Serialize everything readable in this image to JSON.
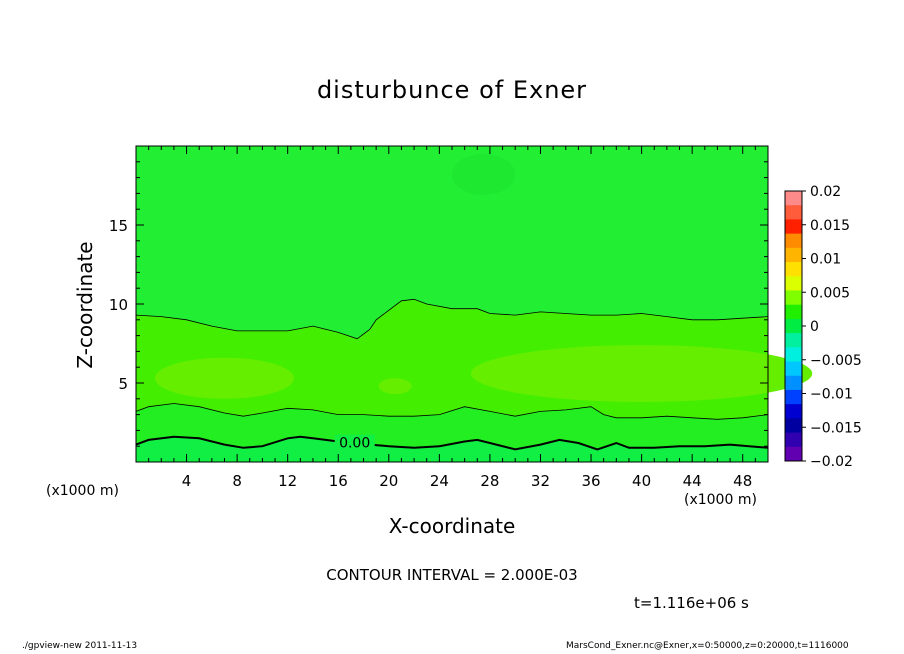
{
  "chart_data": {
    "type": "contour",
    "title": "disturbunce of Exner",
    "xlabel": "X-coordinate",
    "ylabel": "Z-coordinate",
    "x_unit": "(x1000 m)",
    "xlim": [
      0,
      50
    ],
    "ylim": [
      0,
      20
    ],
    "x_ticks": [
      "4",
      "8",
      "12",
      "16",
      "20",
      "24",
      "28",
      "32",
      "36",
      "40",
      "44",
      "48"
    ],
    "x_tick_values": [
      4,
      8,
      12,
      16,
      20,
      24,
      28,
      32,
      36,
      40,
      44,
      48
    ],
    "y_ticks": [
      "5",
      "10",
      "15"
    ],
    "y_tick_values": [
      5,
      10,
      15
    ],
    "contour_interval_text": "CONTOUR INTERVAL = 2.000E-03",
    "contour_labels": [
      {
        "text": "0.00",
        "x": 17.3,
        "y": 1.1
      }
    ],
    "colorbar": {
      "labels": [
        "0.02",
        "0.015",
        "0.01",
        "0.005",
        "0",
        "−0.005",
        "−0.01",
        "−0.015",
        "−0.02"
      ],
      "values": [
        0.02,
        0.015,
        0.01,
        0.005,
        0,
        -0.005,
        -0.01,
        -0.015,
        -0.02
      ],
      "colors": [
        "#ff8a8a",
        "#ff5c3c",
        "#ff2000",
        "#ff8c00",
        "#ffb400",
        "#ffe000",
        "#dcff00",
        "#80ff00",
        "#20f000",
        "#00ee44",
        "#00f0a0",
        "#00f0e0",
        "#00c8ff",
        "#0090ff",
        "#0040ff",
        "#0000d0",
        "#0000a0",
        "#3000b0",
        "#6000b0"
      ]
    },
    "time_label": "t=1.116e+06 s",
    "footer_left": "./gpview-new   2011-11-13",
    "footer_right": "MarsCond_Exner.nc@Exner,x=0:50000,z=0:20000,t=1116000",
    "regions": {
      "background": "#22ee33",
      "upper_band": "#44ee00",
      "mid_band": "#66ee00",
      "lower_band": "#22ee22",
      "bottom_band": "#11ee44"
    },
    "contour_lines": {
      "upper": [
        [
          0,
          9.3
        ],
        [
          2,
          9.2
        ],
        [
          4,
          9.0
        ],
        [
          6,
          8.6
        ],
        [
          8,
          8.3
        ],
        [
          10,
          8.3
        ],
        [
          12,
          8.3
        ],
        [
          14,
          8.6
        ],
        [
          16,
          8.2
        ],
        [
          17.5,
          7.8
        ],
        [
          18.5,
          8.4
        ],
        [
          19,
          9.0
        ],
        [
          20,
          9.6
        ],
        [
          21,
          10.2
        ],
        [
          22,
          10.3
        ],
        [
          23,
          10.0
        ],
        [
          25,
          9.7
        ],
        [
          27,
          9.7
        ],
        [
          28,
          9.4
        ],
        [
          30,
          9.3
        ],
        [
          32,
          9.5
        ],
        [
          34,
          9.4
        ],
        [
          36,
          9.3
        ],
        [
          38,
          9.3
        ],
        [
          40,
          9.4
        ],
        [
          42,
          9.2
        ],
        [
          44,
          9.0
        ],
        [
          46,
          9.0
        ],
        [
          48,
          9.1
        ],
        [
          50,
          9.2
        ]
      ],
      "middle": [
        [
          0,
          3.2
        ],
        [
          1,
          3.5
        ],
        [
          3,
          3.7
        ],
        [
          5,
          3.5
        ],
        [
          7,
          3.1
        ],
        [
          8.5,
          2.9
        ],
        [
          10,
          3.1
        ],
        [
          12,
          3.4
        ],
        [
          14,
          3.3
        ],
        [
          16,
          3.0
        ],
        [
          18,
          3.0
        ],
        [
          20,
          2.9
        ],
        [
          22,
          2.9
        ],
        [
          24,
          3.0
        ],
        [
          26,
          3.5
        ],
        [
          28,
          3.2
        ],
        [
          30,
          2.9
        ],
        [
          32,
          3.2
        ],
        [
          34,
          3.3
        ],
        [
          36,
          3.5
        ],
        [
          37,
          3.0
        ],
        [
          38,
          2.8
        ],
        [
          40,
          2.8
        ],
        [
          42,
          2.9
        ],
        [
          44,
          2.8
        ],
        [
          46,
          2.7
        ],
        [
          48,
          2.8
        ],
        [
          50,
          3.0
        ]
      ],
      "zero": [
        [
          0,
          1.1
        ],
        [
          1,
          1.4
        ],
        [
          3,
          1.6
        ],
        [
          5,
          1.5
        ],
        [
          7,
          1.1
        ],
        [
          8.5,
          0.9
        ],
        [
          10,
          1.0
        ],
        [
          12,
          1.5
        ],
        [
          13,
          1.6
        ],
        [
          14,
          1.5
        ],
        [
          16,
          1.3
        ],
        [
          18.5,
          1.1
        ],
        [
          20,
          1.0
        ],
        [
          22,
          0.9
        ],
        [
          24,
          1.0
        ],
        [
          26,
          1.3
        ],
        [
          27,
          1.4
        ],
        [
          28,
          1.2
        ],
        [
          30,
          0.8
        ],
        [
          32,
          1.1
        ],
        [
          33.5,
          1.4
        ],
        [
          35,
          1.2
        ],
        [
          36.5,
          0.8
        ],
        [
          38,
          1.2
        ],
        [
          39,
          0.9
        ],
        [
          41,
          0.9
        ],
        [
          43,
          1.0
        ],
        [
          45,
          1.0
        ],
        [
          47,
          1.1
        ],
        [
          48.5,
          1.0
        ],
        [
          50,
          0.9
        ]
      ]
    }
  }
}
